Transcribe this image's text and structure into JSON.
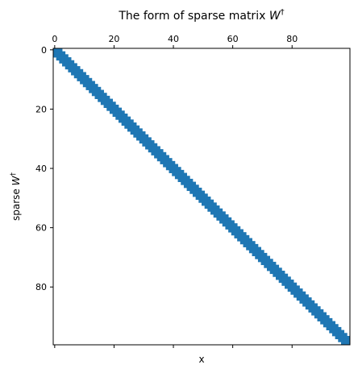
{
  "chart_data": {
    "type": "heatmap",
    "title": "The form of sparse matrix ",
    "title_symbol": "W",
    "title_sup": "†",
    "xlabel": "x",
    "ylabel": "sparse ",
    "ylabel_symbol": "W",
    "ylabel_sup": "†",
    "xlim": [
      -0.5,
      99.5
    ],
    "ylim": [
      99.5,
      -0.5
    ],
    "x_ticks": [
      0,
      20,
      40,
      60,
      80
    ],
    "y_ticks": [
      0,
      20,
      40,
      60,
      80
    ],
    "x_tick_labels": [
      "0",
      "20",
      "40",
      "60",
      "80"
    ],
    "y_tick_labels": [
      "0",
      "20",
      "40",
      "60",
      "80"
    ],
    "x_ticks_position": "top",
    "y_axis_inverted": true,
    "grid": false,
    "matrix_rows": 100,
    "matrix_cols": 100,
    "band": {
      "lower_offset": -2,
      "upper_offset": 2
    },
    "color": "#1f77b4",
    "background": "#ffffff"
  }
}
